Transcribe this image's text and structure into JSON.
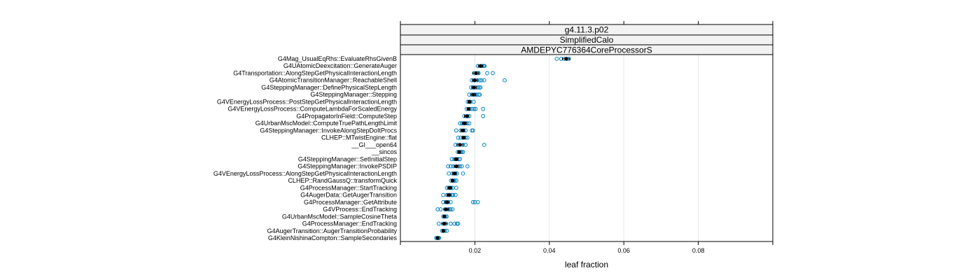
{
  "chart_data": {
    "type": "dotplot",
    "strips": [
      "g4.11.3.p02",
      "SimplifiedCalo",
      "AMDEPYC776364CoreProcessorS"
    ],
    "xlabel": "leaf fraction",
    "xlim": [
      0.0,
      0.1
    ],
    "xticks": [
      0.02,
      0.04,
      0.06,
      0.08
    ],
    "xtick_labels": [
      "0.02",
      "0.04",
      "0.06",
      "0.08"
    ],
    "grid": true,
    "colors": {
      "runs": "#0080c0",
      "mean": "#000000",
      "grid": "#e6e6e6",
      "strip_bg": "#f2f2f2"
    },
    "categories": [
      "G4Mag_UsualEqRhs::EvaluateRhsGivenB",
      "G4UAtomicDeexcitation::GenerateAuger",
      "G4Transportation::AlongStepGetPhysicalInteractionLength",
      "G4AtomicTransitionManager::ReachableShell",
      "G4SteppingManager::DefinePhysicalStepLength",
      "G4SteppingManager::Stepping",
      "G4VEnergyLossProcess::PostStepGetPhysicalInteractionLength",
      "G4VEnergyLossProcess::ComputeLambdaForScaledEnergy",
      "G4PropagatorInField::ComputeStep",
      "G4UrbanMscModel::ComputeTruePathLengthLimit",
      "G4SteppingManager::InvokeAlongStepDoItProcs",
      "CLHEP::MTwistEngine::flat",
      "__GI___open64",
      "__sincos",
      "G4SteppingManager::SetInitialStep",
      "G4SteppingManager::InvokePSDIP",
      "G4VEnergyLossProcess::AlongStepGetPhysicalInteractionLength",
      "CLHEP::RandGaussQ::transformQuick",
      "G4ProcessManager::StartTracking",
      "G4AugerData::GetAugerTransition",
      "G4ProcessManager::GetAttribute",
      "G4VProcess::EndTracking",
      "G4UrbanMscModel::SampleCosineTheta",
      "G4ProcessManager::EndTracking",
      "G4AugerTransition::AugerTransitionProbability",
      "G4KleinNishinaCompton::SampleSecondaries"
    ],
    "series": [
      {
        "mean": 0.0445,
        "err": 0.001,
        "runs": [
          0.042,
          0.0432,
          0.044,
          0.0448,
          0.0452
        ]
      },
      {
        "mean": 0.0215,
        "err": 0.0006,
        "runs": [
          0.0208,
          0.0218,
          0.0221,
          0.0224,
          0.0226
        ]
      },
      {
        "mean": 0.0203,
        "err": 0.0008,
        "runs": [
          0.0198,
          0.0206,
          0.021,
          0.0233,
          0.0248
        ]
      },
      {
        "mean": 0.02,
        "err": 0.0007,
        "runs": [
          0.0192,
          0.0198,
          0.0206,
          0.0213,
          0.0218,
          0.0225,
          0.028
        ]
      },
      {
        "mean": 0.0198,
        "err": 0.0006,
        "runs": [
          0.019,
          0.0195,
          0.0203,
          0.0208,
          0.0212,
          0.0215
        ]
      },
      {
        "mean": 0.0196,
        "err": 0.0006,
        "runs": [
          0.0185,
          0.0192,
          0.02,
          0.0205,
          0.021,
          0.0213
        ]
      },
      {
        "mean": 0.0185,
        "err": 0.0004,
        "runs": [
          0.0181,
          0.0186,
          0.0188,
          0.0197
        ]
      },
      {
        "mean": 0.0183,
        "err": 0.0004,
        "runs": [
          0.0178,
          0.0186,
          0.0192,
          0.0198,
          0.0202,
          0.0222
        ]
      },
      {
        "mean": 0.0178,
        "err": 0.0006,
        "runs": [
          0.0172,
          0.018,
          0.0185,
          0.0222
        ]
      },
      {
        "mean": 0.0172,
        "err": 0.0005,
        "runs": [
          0.016,
          0.0165,
          0.017,
          0.0175,
          0.018,
          0.0185
        ]
      },
      {
        "mean": 0.0167,
        "err": 0.0005,
        "runs": [
          0.015,
          0.0162,
          0.017,
          0.0175,
          0.0192,
          0.0195
        ]
      },
      {
        "mean": 0.017,
        "err": 0.0004,
        "runs": [
          0.0155,
          0.0162,
          0.0168,
          0.0175,
          0.018
        ]
      },
      {
        "mean": 0.016,
        "err": 0.0008,
        "runs": [
          0.0148,
          0.0155,
          0.0168,
          0.0175,
          0.0225
        ]
      },
      {
        "mean": 0.0158,
        "err": 0.0004,
        "runs": [
          0.0154,
          0.0158,
          0.0162,
          0.0165,
          0.0168
        ]
      },
      {
        "mean": 0.015,
        "err": 0.0005,
        "runs": [
          0.0138,
          0.0145,
          0.015,
          0.0156,
          0.016
        ]
      },
      {
        "mean": 0.015,
        "err": 0.0006,
        "runs": [
          0.0128,
          0.0135,
          0.0142,
          0.0155,
          0.016,
          0.0165,
          0.018
        ]
      },
      {
        "mean": 0.0145,
        "err": 0.0005,
        "runs": [
          0.013,
          0.014,
          0.0148,
          0.0152,
          0.0168
        ]
      },
      {
        "mean": 0.014,
        "err": 0.0003,
        "runs": [
          0.0136,
          0.014,
          0.0143,
          0.0146,
          0.015
        ]
      },
      {
        "mean": 0.0133,
        "err": 0.0005,
        "runs": [
          0.0125,
          0.013,
          0.0135,
          0.014,
          0.015
        ]
      },
      {
        "mean": 0.013,
        "err": 0.0005,
        "runs": [
          0.0115,
          0.0125,
          0.0132,
          0.0138,
          0.0142,
          0.0148
        ]
      },
      {
        "mean": 0.0125,
        "err": 0.0005,
        "runs": [
          0.0115,
          0.0122,
          0.0128,
          0.0135,
          0.0195,
          0.02,
          0.0208
        ]
      },
      {
        "mean": 0.0123,
        "err": 0.0006,
        "runs": [
          0.01,
          0.0108,
          0.012,
          0.0128,
          0.0132,
          0.0135,
          0.014
        ]
      },
      {
        "mean": 0.0118,
        "err": 0.0003,
        "runs": [
          0.0115,
          0.0118,
          0.0121,
          0.0124
        ]
      },
      {
        "mean": 0.0118,
        "err": 0.0007,
        "runs": [
          0.0103,
          0.0115,
          0.0122,
          0.0135,
          0.0145,
          0.0152,
          0.0155
        ]
      },
      {
        "mean": 0.0115,
        "err": 0.0003,
        "runs": [
          0.0112,
          0.0116,
          0.012,
          0.0125
        ]
      },
      {
        "mean": 0.01,
        "err": 0.0003,
        "runs": [
          0.0096,
          0.0099,
          0.0102,
          0.0104
        ]
      }
    ]
  }
}
